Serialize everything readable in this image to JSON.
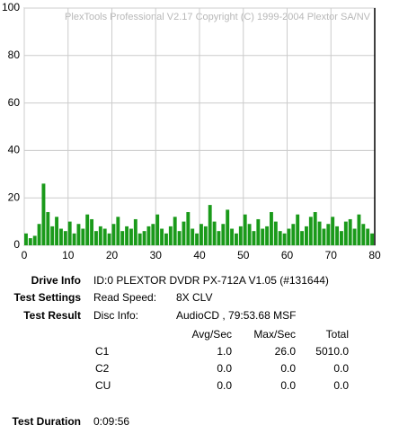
{
  "chart_data": {
    "type": "bar",
    "watermark": "PlexTools Professional V2.17 Copyright (C) 1999-2004 Plextor SA/NV",
    "x": [
      0,
      1,
      2,
      3,
      4,
      5,
      6,
      7,
      8,
      9,
      10,
      11,
      12,
      13,
      14,
      15,
      16,
      17,
      18,
      19,
      20,
      21,
      22,
      23,
      24,
      25,
      26,
      27,
      28,
      29,
      30,
      31,
      32,
      33,
      34,
      35,
      36,
      37,
      38,
      39,
      40,
      41,
      42,
      43,
      44,
      45,
      46,
      47,
      48,
      49,
      50,
      51,
      52,
      53,
      54,
      55,
      56,
      57,
      58,
      59,
      60,
      61,
      62,
      63,
      64,
      65,
      66,
      67,
      68,
      69,
      70,
      71,
      72,
      73,
      74,
      75,
      76,
      77,
      78,
      79
    ],
    "values": [
      5,
      3,
      4,
      9,
      26,
      14,
      8,
      12,
      7,
      6,
      10,
      5,
      9,
      7,
      13,
      11,
      6,
      8,
      7,
      5,
      9,
      12,
      6,
      8,
      7,
      11,
      5,
      6,
      8,
      9,
      13,
      7,
      5,
      8,
      12,
      6,
      10,
      14,
      7,
      5,
      9,
      8,
      17,
      10,
      6,
      9,
      15,
      7,
      5,
      8,
      13,
      9,
      6,
      11,
      7,
      8,
      14,
      10,
      6,
      5,
      7,
      9,
      13,
      6,
      8,
      12,
      14,
      10,
      7,
      9,
      12,
      8,
      6,
      10,
      11,
      7,
      13,
      9,
      7,
      5
    ],
    "color": "#1a9a1a",
    "xlim": [
      0,
      80
    ],
    "xticks": [
      0,
      10,
      20,
      30,
      40,
      50,
      60,
      70,
      80
    ],
    "ylim": [
      0,
      100
    ],
    "yticks": [
      0,
      20,
      40,
      60,
      80,
      100
    ],
    "grid": true
  },
  "report": {
    "drive_info": {
      "label": "Drive Info",
      "value": "ID:0 PLEXTOR DVDR PX-712A V1.05 (#131644)"
    },
    "test_settings": {
      "label": "Test Settings",
      "key": "Read Speed:",
      "value": "8X CLV"
    },
    "test_result": {
      "label": "Test Result",
      "key": "Disc Info:",
      "value": "AudioCD , 79:53.68 MSF"
    },
    "stats": {
      "header": [
        "Avg/Sec",
        "Max/Sec",
        "Total"
      ],
      "rows": [
        [
          "C1",
          "1.0",
          "26.0",
          "5010.0"
        ],
        [
          "C2",
          "0.0",
          "0.0",
          "0.0"
        ],
        [
          "CU",
          "0.0",
          "0.0",
          "0.0"
        ]
      ]
    },
    "test_duration": {
      "label": "Test Duration",
      "value": "0:09:56"
    }
  }
}
